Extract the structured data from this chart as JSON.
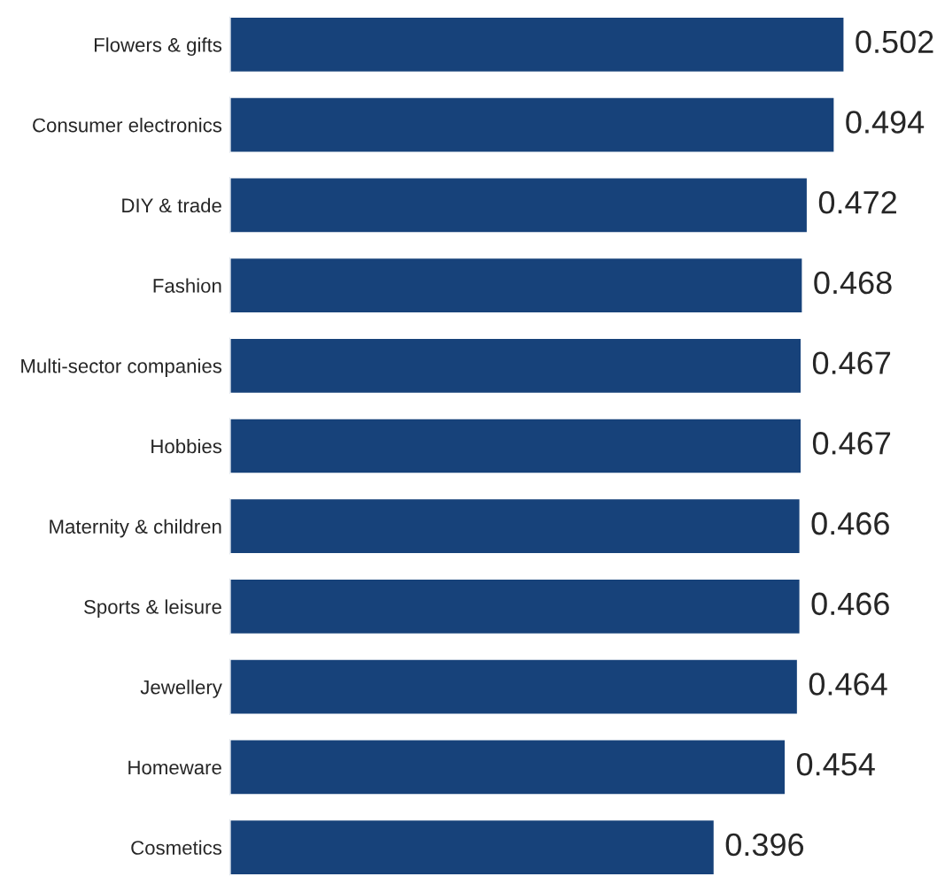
{
  "chart_data": {
    "type": "bar",
    "orientation": "horizontal",
    "categories": [
      "Flowers & gifts",
      "Consumer electronics",
      "DIY & trade",
      "Fashion",
      "Multi-sector companies",
      "Hobbies",
      "Maternity & children",
      "Sports & leisure",
      "Jewellery",
      "Homeware",
      "Cosmetics"
    ],
    "values": [
      0.502,
      0.494,
      0.472,
      0.468,
      0.467,
      0.467,
      0.466,
      0.466,
      0.464,
      0.454,
      0.396
    ],
    "color": "#17427a",
    "data_labels": true
  }
}
